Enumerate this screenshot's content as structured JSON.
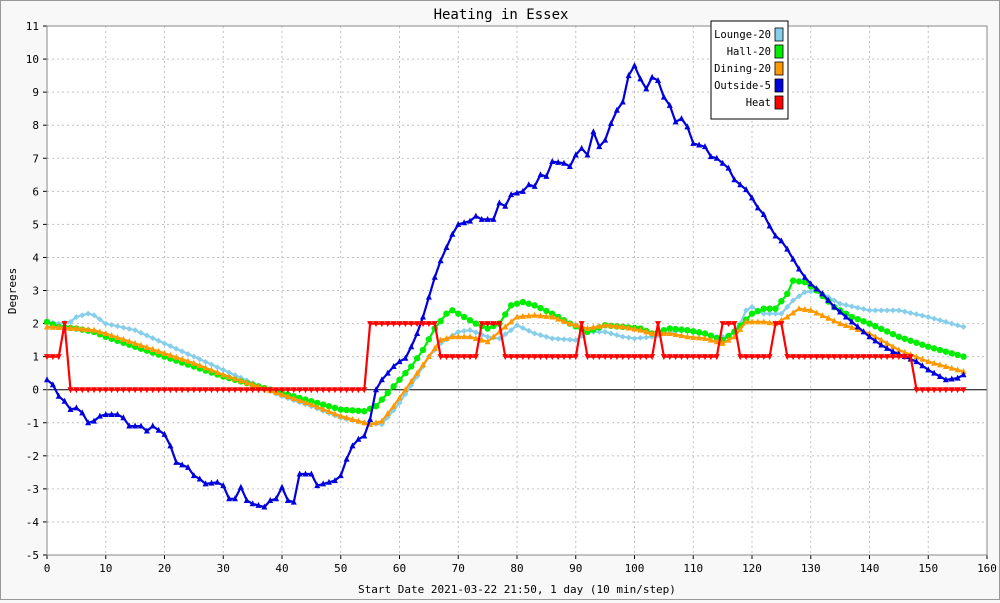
{
  "chart_data": {
    "type": "line",
    "title": "Heating in Essex",
    "xlabel": "Start Date 2021-03-22 21:50, 1 day (10 min/step)",
    "ylabel": "Degrees",
    "xlim": [
      0,
      160
    ],
    "ylim": [
      -5,
      11
    ],
    "xticks": [
      0,
      10,
      20,
      30,
      40,
      50,
      60,
      70,
      80,
      90,
      100,
      110,
      120,
      130,
      140,
      150,
      160
    ],
    "yticks": [
      -5,
      -4,
      -3,
      -2,
      -1,
      0,
      1,
      2,
      3,
      4,
      5,
      6,
      7,
      8,
      9,
      10,
      11
    ],
    "grid": true,
    "legend_position": "top-right",
    "series": [
      {
        "name": "Lounge-20",
        "color": "#87ceeb",
        "marker": "diamond",
        "points": [
          [
            0,
            2.05
          ],
          [
            2,
            2.0
          ],
          [
            4,
            2.05
          ],
          [
            5,
            2.2
          ],
          [
            7,
            2.3
          ],
          [
            8,
            2.25
          ],
          [
            10,
            2.0
          ],
          [
            15,
            1.8
          ],
          [
            20,
            1.4
          ],
          [
            25,
            1.0
          ],
          [
            30,
            0.6
          ],
          [
            35,
            0.2
          ],
          [
            40,
            -0.2
          ],
          [
            45,
            -0.5
          ],
          [
            50,
            -0.85
          ],
          [
            54,
            -1.0
          ],
          [
            57,
            -1.05
          ],
          [
            60,
            -0.4
          ],
          [
            63,
            0.4
          ],
          [
            65,
            1.0
          ],
          [
            67,
            1.4
          ],
          [
            70,
            1.75
          ],
          [
            72,
            1.8
          ],
          [
            75,
            1.6
          ],
          [
            77,
            1.55
          ],
          [
            79,
            1.8
          ],
          [
            80,
            1.95
          ],
          [
            83,
            1.7
          ],
          [
            86,
            1.55
          ],
          [
            90,
            1.5
          ],
          [
            92,
            1.75
          ],
          [
            95,
            1.75
          ],
          [
            98,
            1.6
          ],
          [
            100,
            1.55
          ],
          [
            103,
            1.6
          ],
          [
            105,
            1.7
          ],
          [
            108,
            1.8
          ],
          [
            111,
            1.7
          ],
          [
            114,
            1.6
          ],
          [
            116,
            1.6
          ],
          [
            118,
            2.0
          ],
          [
            119,
            2.4
          ],
          [
            120,
            2.5
          ],
          [
            122,
            2.3
          ],
          [
            125,
            2.3
          ],
          [
            127,
            2.7
          ],
          [
            129,
            2.95
          ],
          [
            131,
            3.0
          ],
          [
            135,
            2.6
          ],
          [
            140,
            2.4
          ],
          [
            145,
            2.4
          ],
          [
            150,
            2.2
          ],
          [
            156,
            1.9
          ]
        ]
      },
      {
        "name": "Hall-20",
        "color": "#00ee00",
        "marker": "circle",
        "points": [
          [
            0,
            2.05
          ],
          [
            2,
            1.9
          ],
          [
            5,
            1.85
          ],
          [
            8,
            1.75
          ],
          [
            10,
            1.6
          ],
          [
            15,
            1.3
          ],
          [
            20,
            1.0
          ],
          [
            25,
            0.7
          ],
          [
            30,
            0.4
          ],
          [
            35,
            0.15
          ],
          [
            40,
            -0.1
          ],
          [
            45,
            -0.35
          ],
          [
            50,
            -0.6
          ],
          [
            54,
            -0.65
          ],
          [
            56,
            -0.5
          ],
          [
            58,
            -0.1
          ],
          [
            60,
            0.3
          ],
          [
            62,
            0.7
          ],
          [
            64,
            1.2
          ],
          [
            66,
            1.85
          ],
          [
            68,
            2.3
          ],
          [
            69,
            2.4
          ],
          [
            71,
            2.2
          ],
          [
            73,
            2.0
          ],
          [
            75,
            1.85
          ],
          [
            77,
            2.0
          ],
          [
            79,
            2.55
          ],
          [
            81,
            2.65
          ],
          [
            83,
            2.55
          ],
          [
            86,
            2.3
          ],
          [
            89,
            2.0
          ],
          [
            92,
            1.75
          ],
          [
            95,
            1.95
          ],
          [
            98,
            1.9
          ],
          [
            101,
            1.85
          ],
          [
            103,
            1.7
          ],
          [
            106,
            1.85
          ],
          [
            109,
            1.8
          ],
          [
            112,
            1.7
          ],
          [
            115,
            1.5
          ],
          [
            117,
            1.75
          ],
          [
            120,
            2.3
          ],
          [
            122,
            2.45
          ],
          [
            124,
            2.45
          ],
          [
            126,
            2.9
          ],
          [
            127,
            3.3
          ],
          [
            129,
            3.25
          ],
          [
            131,
            3.0
          ],
          [
            134,
            2.5
          ],
          [
            137,
            2.2
          ],
          [
            140,
            2.0
          ],
          [
            145,
            1.6
          ],
          [
            150,
            1.3
          ],
          [
            156,
            1.0
          ]
        ]
      },
      {
        "name": "Dining-20",
        "color": "#ff9900",
        "marker": "triangle",
        "points": [
          [
            0,
            1.9
          ],
          [
            5,
            1.85
          ],
          [
            8,
            1.8
          ],
          [
            10,
            1.7
          ],
          [
            15,
            1.4
          ],
          [
            20,
            1.1
          ],
          [
            25,
            0.8
          ],
          [
            30,
            0.45
          ],
          [
            35,
            0.15
          ],
          [
            40,
            -0.15
          ],
          [
            45,
            -0.45
          ],
          [
            50,
            -0.8
          ],
          [
            55,
            -1.05
          ],
          [
            57,
            -0.95
          ],
          [
            59,
            -0.5
          ],
          [
            61,
            0.0
          ],
          [
            63,
            0.5
          ],
          [
            65,
            1.0
          ],
          [
            67,
            1.5
          ],
          [
            69,
            1.6
          ],
          [
            72,
            1.6
          ],
          [
            75,
            1.45
          ],
          [
            77,
            1.75
          ],
          [
            80,
            2.2
          ],
          [
            83,
            2.25
          ],
          [
            86,
            2.2
          ],
          [
            89,
            2.0
          ],
          [
            92,
            1.85
          ],
          [
            95,
            1.95
          ],
          [
            98,
            1.9
          ],
          [
            101,
            1.8
          ],
          [
            103,
            1.7
          ],
          [
            106,
            1.7
          ],
          [
            109,
            1.6
          ],
          [
            112,
            1.55
          ],
          [
            115,
            1.4
          ],
          [
            117,
            1.6
          ],
          [
            119,
            2.05
          ],
          [
            122,
            2.05
          ],
          [
            124,
            2.0
          ],
          [
            126,
            2.2
          ],
          [
            128,
            2.45
          ],
          [
            130,
            2.4
          ],
          [
            135,
            2.0
          ],
          [
            140,
            1.7
          ],
          [
            145,
            1.2
          ],
          [
            150,
            0.85
          ],
          [
            156,
            0.55
          ]
        ]
      },
      {
        "name": "Outside-5",
        "color": "#0000dd",
        "marker": "triangle",
        "points": [
          [
            0,
            0.3
          ],
          [
            1,
            0.15
          ],
          [
            2,
            -0.2
          ],
          [
            3,
            -0.35
          ],
          [
            4,
            -0.6
          ],
          [
            5,
            -0.55
          ],
          [
            6,
            -0.7
          ],
          [
            7,
            -1.0
          ],
          [
            8,
            -0.95
          ],
          [
            9,
            -0.8
          ],
          [
            10,
            -0.75
          ],
          [
            12,
            -0.75
          ],
          [
            13,
            -0.85
          ],
          [
            14,
            -1.1
          ],
          [
            16,
            -1.1
          ],
          [
            17,
            -1.25
          ],
          [
            18,
            -1.1
          ],
          [
            20,
            -1.35
          ],
          [
            21,
            -1.7
          ],
          [
            22,
            -2.2
          ],
          [
            24,
            -2.35
          ],
          [
            25,
            -2.6
          ],
          [
            26,
            -2.7
          ],
          [
            27,
            -2.85
          ],
          [
            29,
            -2.8
          ],
          [
            30,
            -2.9
          ],
          [
            31,
            -3.3
          ],
          [
            32,
            -3.3
          ],
          [
            33,
            -2.95
          ],
          [
            34,
            -3.35
          ],
          [
            35,
            -3.45
          ],
          [
            36,
            -3.5
          ],
          [
            37,
            -3.55
          ],
          [
            38,
            -3.35
          ],
          [
            39,
            -3.3
          ],
          [
            40,
            -2.95
          ],
          [
            41,
            -3.35
          ],
          [
            42,
            -3.4
          ],
          [
            43,
            -2.55
          ],
          [
            45,
            -2.55
          ],
          [
            46,
            -2.9
          ],
          [
            47,
            -2.85
          ],
          [
            48,
            -2.8
          ],
          [
            49,
            -2.75
          ],
          [
            50,
            -2.6
          ],
          [
            51,
            -2.1
          ],
          [
            52,
            -1.7
          ],
          [
            53,
            -1.5
          ],
          [
            54,
            -1.4
          ],
          [
            55,
            -0.9
          ],
          [
            56,
            0.0
          ],
          [
            57,
            0.3
          ],
          [
            58,
            0.5
          ],
          [
            59,
            0.7
          ],
          [
            60,
            0.85
          ],
          [
            61,
            0.95
          ],
          [
            62,
            1.3
          ],
          [
            63,
            1.7
          ],
          [
            64,
            2.2
          ],
          [
            65,
            2.8
          ],
          [
            66,
            3.4
          ],
          [
            67,
            3.9
          ],
          [
            68,
            4.3
          ],
          [
            69,
            4.7
          ],
          [
            70,
            5.0
          ],
          [
            72,
            5.1
          ],
          [
            73,
            5.25
          ],
          [
            74,
            5.15
          ],
          [
            76,
            5.15
          ],
          [
            77,
            5.65
          ],
          [
            78,
            5.55
          ],
          [
            79,
            5.9
          ],
          [
            81,
            6.0
          ],
          [
            82,
            6.2
          ],
          [
            83,
            6.15
          ],
          [
            84,
            6.5
          ],
          [
            85,
            6.45
          ],
          [
            86,
            6.9
          ],
          [
            88,
            6.85
          ],
          [
            89,
            6.75
          ],
          [
            90,
            7.1
          ],
          [
            91,
            7.3
          ],
          [
            92,
            7.1
          ],
          [
            93,
            7.8
          ],
          [
            94,
            7.35
          ],
          [
            95,
            7.55
          ],
          [
            96,
            8.05
          ],
          [
            97,
            8.45
          ],
          [
            98,
            8.7
          ],
          [
            99,
            9.5
          ],
          [
            100,
            9.8
          ],
          [
            101,
            9.4
          ],
          [
            102,
            9.1
          ],
          [
            103,
            9.45
          ],
          [
            104,
            9.35
          ],
          [
            105,
            8.85
          ],
          [
            106,
            8.6
          ],
          [
            107,
            8.1
          ],
          [
            108,
            8.2
          ],
          [
            109,
            7.95
          ],
          [
            110,
            7.45
          ],
          [
            111,
            7.4
          ],
          [
            112,
            7.35
          ],
          [
            113,
            7.05
          ],
          [
            114,
            7.0
          ],
          [
            115,
            6.85
          ],
          [
            116,
            6.7
          ],
          [
            117,
            6.35
          ],
          [
            118,
            6.2
          ],
          [
            119,
            6.05
          ],
          [
            120,
            5.8
          ],
          [
            121,
            5.5
          ],
          [
            122,
            5.3
          ],
          [
            123,
            4.95
          ],
          [
            124,
            4.65
          ],
          [
            125,
            4.5
          ],
          [
            126,
            4.25
          ],
          [
            127,
            3.95
          ],
          [
            128,
            3.65
          ],
          [
            129,
            3.4
          ],
          [
            130,
            3.2
          ],
          [
            132,
            2.9
          ],
          [
            134,
            2.5
          ],
          [
            136,
            2.2
          ],
          [
            138,
            1.9
          ],
          [
            140,
            1.6
          ],
          [
            142,
            1.35
          ],
          [
            144,
            1.15
          ],
          [
            146,
            1.0
          ],
          [
            148,
            0.85
          ],
          [
            150,
            0.6
          ],
          [
            152,
            0.4
          ],
          [
            153,
            0.3
          ],
          [
            155,
            0.35
          ],
          [
            156,
            0.45
          ]
        ]
      },
      {
        "name": "Heat",
        "color": "#ff0000",
        "marker": "triangle-down",
        "points": [
          [
            0,
            1.0
          ],
          [
            2,
            1.0
          ],
          [
            3,
            2.0
          ],
          [
            4,
            0.0
          ],
          [
            54,
            0.0
          ],
          [
            55,
            2.0
          ],
          [
            66,
            2.0
          ],
          [
            67,
            1.0
          ],
          [
            73,
            1.0
          ],
          [
            74,
            2.0
          ],
          [
            77,
            2.0
          ],
          [
            78,
            1.0
          ],
          [
            90,
            1.0
          ],
          [
            91,
            2.0
          ],
          [
            92,
            1.0
          ],
          [
            103,
            1.0
          ],
          [
            104,
            2.0
          ],
          [
            105,
            1.0
          ],
          [
            114,
            1.0
          ],
          [
            115,
            2.0
          ],
          [
            117,
            2.0
          ],
          [
            118,
            1.0
          ],
          [
            123,
            1.0
          ],
          [
            124,
            2.0
          ],
          [
            125,
            2.0
          ],
          [
            126,
            1.0
          ],
          [
            147,
            1.0
          ],
          [
            148,
            0.0
          ],
          [
            156,
            0.0
          ]
        ]
      }
    ]
  }
}
